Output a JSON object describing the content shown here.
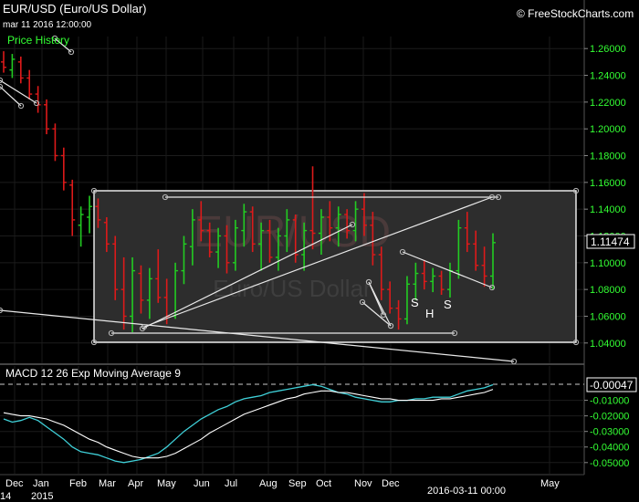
{
  "header": {
    "title": "EUR/USD (Euro/US Dollar)",
    "datetime": "mar 11 2016 12:00:00",
    "brand": "© FreeStockCharts.com",
    "price_history_label": "Price History"
  },
  "watermark": {
    "symbol": "EUR/USD",
    "name": "Euro/US Dollar"
  },
  "price_panel": {
    "last_price_label": "1.11474",
    "last_price": 1.11474,
    "y_ticks": [
      "1.26000",
      "1.24000",
      "1.22000",
      "1.20000",
      "1.18000",
      "1.16000",
      "1.14000",
      "1.12000",
      "1.10000",
      "1.08000",
      "1.06000",
      "1.04000"
    ],
    "pattern_labels": [
      "S",
      "H",
      "S"
    ]
  },
  "macd_panel": {
    "label": "MACD 12 26  Exp Moving Average 9",
    "last_value_label": "-0.00047",
    "last_value": -0.00047,
    "y_ticks": [
      "-0.01000",
      "-0.02000",
      "-0.03000",
      "-0.04000",
      "-0.05000"
    ]
  },
  "x_axis": {
    "months": [
      "Dec",
      "Jan",
      "Feb",
      "Mar",
      "Apr",
      "May",
      "Jun",
      "Jul",
      "Aug",
      "Sep",
      "Oct",
      "Nov",
      "Dec",
      "May"
    ],
    "year_labels": [
      "14",
      "2015"
    ],
    "cursor_date": "2016-03-11 00:00"
  },
  "colors": {
    "up": "#22cc22",
    "down": "#dd1a1a",
    "macd_line": "#3fd0d8",
    "signal_line": "#ffffff",
    "axis_text": "#33ff33",
    "box_fill": "#2d2d2d"
  },
  "chart_data": {
    "type": "bar",
    "series": [
      {
        "name": "EUR/USD",
        "kind": "ohlc",
        "values": [
          {
            "o": 1.25,
            "h": 1.258,
            "l": 1.242,
            "c": 1.246
          },
          {
            "o": 1.244,
            "h": 1.256,
            "l": 1.238,
            "c": 1.252
          },
          {
            "o": 1.25,
            "h": 1.254,
            "l": 1.234,
            "c": 1.238
          },
          {
            "o": 1.238,
            "h": 1.244,
            "l": 1.222,
            "c": 1.226
          },
          {
            "o": 1.226,
            "h": 1.232,
            "l": 1.212,
            "c": 1.218
          },
          {
            "o": 1.218,
            "h": 1.222,
            "l": 1.196,
            "c": 1.2
          },
          {
            "o": 1.2,
            "h": 1.204,
            "l": 1.176,
            "c": 1.18
          },
          {
            "o": 1.18,
            "h": 1.186,
            "l": 1.154,
            "c": 1.16
          },
          {
            "o": 1.158,
            "h": 1.162,
            "l": 1.12,
            "c": 1.132
          },
          {
            "o": 1.128,
            "h": 1.142,
            "l": 1.112,
            "c": 1.136
          },
          {
            "o": 1.134,
            "h": 1.15,
            "l": 1.122,
            "c": 1.142
          },
          {
            "o": 1.142,
            "h": 1.148,
            "l": 1.126,
            "c": 1.132
          },
          {
            "o": 1.13,
            "h": 1.134,
            "l": 1.108,
            "c": 1.114
          },
          {
            "o": 1.114,
            "h": 1.12,
            "l": 1.072,
            "c": 1.08
          },
          {
            "o": 1.08,
            "h": 1.104,
            "l": 1.05,
            "c": 1.06
          },
          {
            "o": 1.06,
            "h": 1.104,
            "l": 1.048,
            "c": 1.094
          },
          {
            "o": 1.092,
            "h": 1.098,
            "l": 1.062,
            "c": 1.072
          },
          {
            "o": 1.072,
            "h": 1.096,
            "l": 1.058,
            "c": 1.088
          },
          {
            "o": 1.088,
            "h": 1.11,
            "l": 1.07,
            "c": 1.074
          },
          {
            "o": 1.074,
            "h": 1.088,
            "l": 1.054,
            "c": 1.06
          },
          {
            "o": 1.06,
            "h": 1.1,
            "l": 1.058,
            "c": 1.094
          },
          {
            "o": 1.094,
            "h": 1.12,
            "l": 1.084,
            "c": 1.114
          },
          {
            "o": 1.112,
            "h": 1.14,
            "l": 1.098,
            "c": 1.132
          },
          {
            "o": 1.132,
            "h": 1.146,
            "l": 1.116,
            "c": 1.124
          },
          {
            "o": 1.124,
            "h": 1.13,
            "l": 1.104,
            "c": 1.108
          },
          {
            "o": 1.108,
            "h": 1.126,
            "l": 1.096,
            "c": 1.12
          },
          {
            "o": 1.12,
            "h": 1.128,
            "l": 1.092,
            "c": 1.1
          },
          {
            "o": 1.1,
            "h": 1.132,
            "l": 1.094,
            "c": 1.126
          },
          {
            "o": 1.124,
            "h": 1.144,
            "l": 1.112,
            "c": 1.138
          },
          {
            "o": 1.138,
            "h": 1.142,
            "l": 1.108,
            "c": 1.114
          },
          {
            "o": 1.114,
            "h": 1.13,
            "l": 1.094,
            "c": 1.124
          },
          {
            "o": 1.124,
            "h": 1.132,
            "l": 1.1,
            "c": 1.104
          },
          {
            "o": 1.104,
            "h": 1.126,
            "l": 1.094,
            "c": 1.12
          },
          {
            "o": 1.12,
            "h": 1.14,
            "l": 1.108,
            "c": 1.132
          },
          {
            "o": 1.132,
            "h": 1.136,
            "l": 1.1,
            "c": 1.106
          },
          {
            "o": 1.106,
            "h": 1.13,
            "l": 1.094,
            "c": 1.124
          },
          {
            "o": 1.124,
            "h": 1.172,
            "l": 1.11,
            "c": 1.122
          },
          {
            "o": 1.122,
            "h": 1.14,
            "l": 1.106,
            "c": 1.134
          },
          {
            "o": 1.134,
            "h": 1.146,
            "l": 1.116,
            "c": 1.126
          },
          {
            "o": 1.126,
            "h": 1.142,
            "l": 1.112,
            "c": 1.136
          },
          {
            "o": 1.136,
            "h": 1.14,
            "l": 1.118,
            "c": 1.124
          },
          {
            "o": 1.124,
            "h": 1.146,
            "l": 1.116,
            "c": 1.14
          },
          {
            "o": 1.14,
            "h": 1.152,
            "l": 1.12,
            "c": 1.128
          },
          {
            "o": 1.128,
            "h": 1.138,
            "l": 1.098,
            "c": 1.106
          },
          {
            "o": 1.106,
            "h": 1.112,
            "l": 1.072,
            "c": 1.08
          },
          {
            "o": 1.08,
            "h": 1.086,
            "l": 1.062,
            "c": 1.066
          },
          {
            "o": 1.066,
            "h": 1.072,
            "l": 1.05,
            "c": 1.058
          },
          {
            "o": 1.058,
            "h": 1.09,
            "l": 1.054,
            "c": 1.084
          },
          {
            "o": 1.084,
            "h": 1.1,
            "l": 1.072,
            "c": 1.092
          },
          {
            "o": 1.092,
            "h": 1.102,
            "l": 1.08,
            "c": 1.086
          },
          {
            "o": 1.086,
            "h": 1.096,
            "l": 1.078,
            "c": 1.09
          },
          {
            "o": 1.09,
            "h": 1.094,
            "l": 1.076,
            "c": 1.08
          },
          {
            "o": 1.08,
            "h": 1.1,
            "l": 1.074,
            "c": 1.094
          },
          {
            "o": 1.094,
            "h": 1.132,
            "l": 1.088,
            "c": 1.126
          },
          {
            "o": 1.126,
            "h": 1.138,
            "l": 1.108,
            "c": 1.114
          },
          {
            "o": 1.114,
            "h": 1.124,
            "l": 1.094,
            "c": 1.098
          },
          {
            "o": 1.098,
            "h": 1.112,
            "l": 1.082,
            "c": 1.09
          },
          {
            "o": 1.09,
            "h": 1.122,
            "l": 1.08,
            "c": 1.115
          }
        ]
      },
      {
        "name": "MACD 12 26",
        "values": [
          -0.022,
          -0.024,
          -0.023,
          -0.021,
          -0.023,
          -0.027,
          -0.031,
          -0.035,
          -0.04,
          -0.043,
          -0.044,
          -0.045,
          -0.047,
          -0.049,
          -0.05,
          -0.049,
          -0.048,
          -0.046,
          -0.044,
          -0.04,
          -0.035,
          -0.03,
          -0.026,
          -0.022,
          -0.019,
          -0.016,
          -0.014,
          -0.011,
          -0.009,
          -0.008,
          -0.007,
          -0.005,
          -0.004,
          -0.003,
          -0.002,
          -0.001,
          0.0,
          -0.001,
          -0.003,
          -0.005,
          -0.006,
          -0.008,
          -0.009,
          -0.01,
          -0.011,
          -0.011,
          -0.01,
          -0.01,
          -0.009,
          -0.009,
          -0.008,
          -0.008,
          -0.008,
          -0.006,
          -0.004,
          -0.003,
          -0.002,
          0.0
        ]
      },
      {
        "name": "Exp Moving Average 9",
        "values": [
          -0.018,
          -0.019,
          -0.02,
          -0.02,
          -0.021,
          -0.022,
          -0.024,
          -0.026,
          -0.029,
          -0.032,
          -0.035,
          -0.037,
          -0.04,
          -0.042,
          -0.044,
          -0.046,
          -0.047,
          -0.047,
          -0.047,
          -0.046,
          -0.044,
          -0.041,
          -0.038,
          -0.035,
          -0.031,
          -0.028,
          -0.025,
          -0.022,
          -0.019,
          -0.017,
          -0.015,
          -0.013,
          -0.011,
          -0.009,
          -0.008,
          -0.006,
          -0.005,
          -0.004,
          -0.004,
          -0.005,
          -0.005,
          -0.006,
          -0.007,
          -0.008,
          -0.009,
          -0.009,
          -0.01,
          -0.01,
          -0.01,
          -0.01,
          -0.01,
          -0.009,
          -0.009,
          -0.008,
          -0.007,
          -0.006,
          -0.005,
          -0.003
        ]
      }
    ],
    "xlabel": "",
    "ylabel": "",
    "ylim": [
      1.03,
      1.27
    ],
    "macd_ylim": [
      -0.052,
      0.002
    ],
    "grid": true,
    "legend": "top-left"
  }
}
